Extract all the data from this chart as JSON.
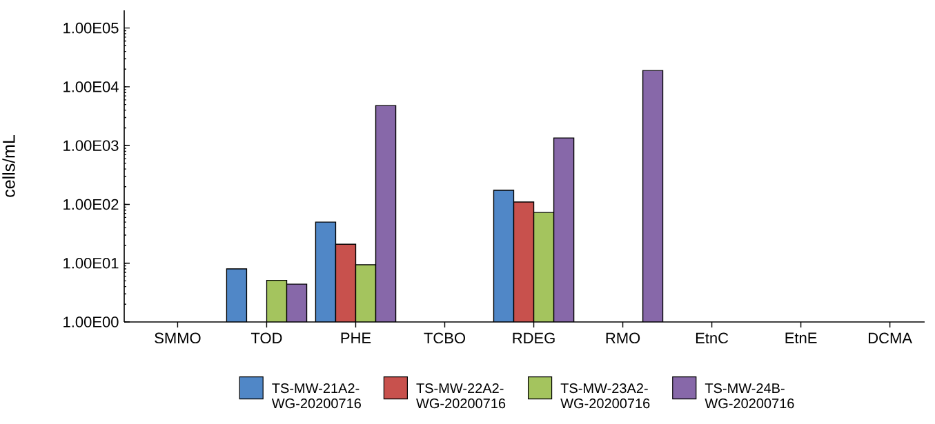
{
  "chart_data": {
    "type": "bar",
    "ylabel": "cells/mL",
    "log": "y",
    "legend": "bottom",
    "grid": false,
    "categories": [
      "SMMO",
      "TOD",
      "PHE",
      "TCBO",
      "RDEG",
      "RMO",
      "EtnC",
      "EtnE",
      "DCMA"
    ],
    "ylim": [
      1,
      200000
    ],
    "yticks": [
      {
        "value": 1,
        "label": "1.00E00"
      },
      {
        "value": 10,
        "label": "1.00E01"
      },
      {
        "value": 100,
        "label": "1.00E02"
      },
      {
        "value": 1000,
        "label": "1.00E03"
      },
      {
        "value": 10000,
        "label": "1.00E04"
      },
      {
        "value": 100000,
        "label": "1.00E05"
      }
    ],
    "series": [
      {
        "name": "TS-MW-21A2-WG-20200716",
        "color": "#5087c7",
        "values": [
          null,
          8,
          50,
          null,
          174,
          null,
          null,
          null,
          null
        ]
      },
      {
        "name": "TS-MW-22A2-WG-20200716",
        "color": "#c8514d",
        "values": [
          null,
          null,
          21,
          null,
          110,
          null,
          null,
          null,
          null
        ]
      },
      {
        "name": "TS-MW-23A2-WG-20200716",
        "color": "#a4c45e",
        "values": [
          null,
          5.1,
          9.4,
          null,
          73,
          null,
          null,
          null,
          null
        ]
      },
      {
        "name": "TS-MW-24B-WG-20200716",
        "color": "#8768a9",
        "values": [
          null,
          4.4,
          4800,
          null,
          1350,
          19000,
          null,
          null,
          null
        ]
      }
    ]
  }
}
